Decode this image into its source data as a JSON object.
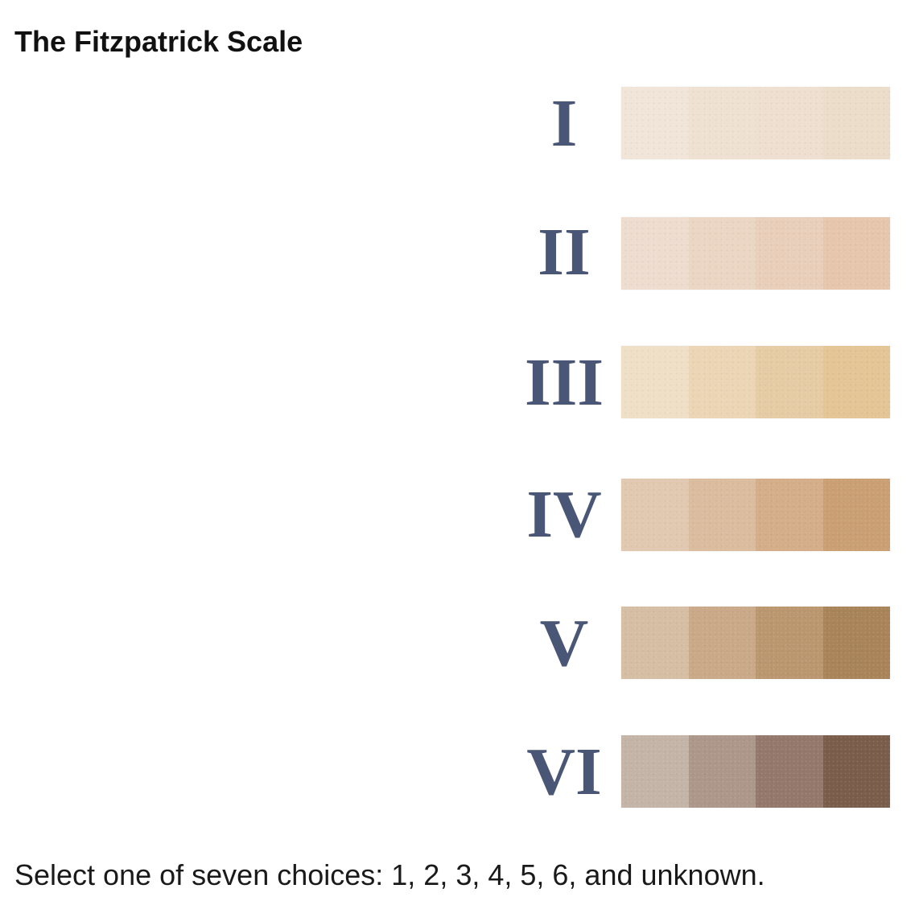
{
  "title": "The Fitzpatrick Scale",
  "scale": [
    {
      "numeral": "I",
      "swatch_colors": [
        "#f1e4d8",
        "#efe1d2",
        "#eedfd0",
        "#ecdcca"
      ]
    },
    {
      "numeral": "II",
      "swatch_colors": [
        "#eedccf",
        "#ebd5c3",
        "#e9cfba",
        "#e6c7ad"
      ]
    },
    {
      "numeral": "III",
      "swatch_colors": [
        "#efdfc6",
        "#ebd5b5",
        "#e6cca5",
        "#e3c596"
      ]
    },
    {
      "numeral": "IV",
      "swatch_colors": [
        "#e1c8b0",
        "#dbbc9e",
        "#d4ad89",
        "#cb9f74"
      ]
    },
    {
      "numeral": "V",
      "swatch_colors": [
        "#d5bea3",
        "#c9a987",
        "#bb9770",
        "#a98459"
      ]
    },
    {
      "numeral": "VI",
      "swatch_colors": [
        "#c3b4a7",
        "#ad978a",
        "#94786b",
        "#7b5d4b"
      ]
    }
  ],
  "caption": "Select one of seven choices: 1, 2, 3, 4, 5, 6, and unknown.",
  "colors": {
    "numeral": "#4a5675",
    "title": "#111111",
    "caption": "#1a1a1a"
  }
}
